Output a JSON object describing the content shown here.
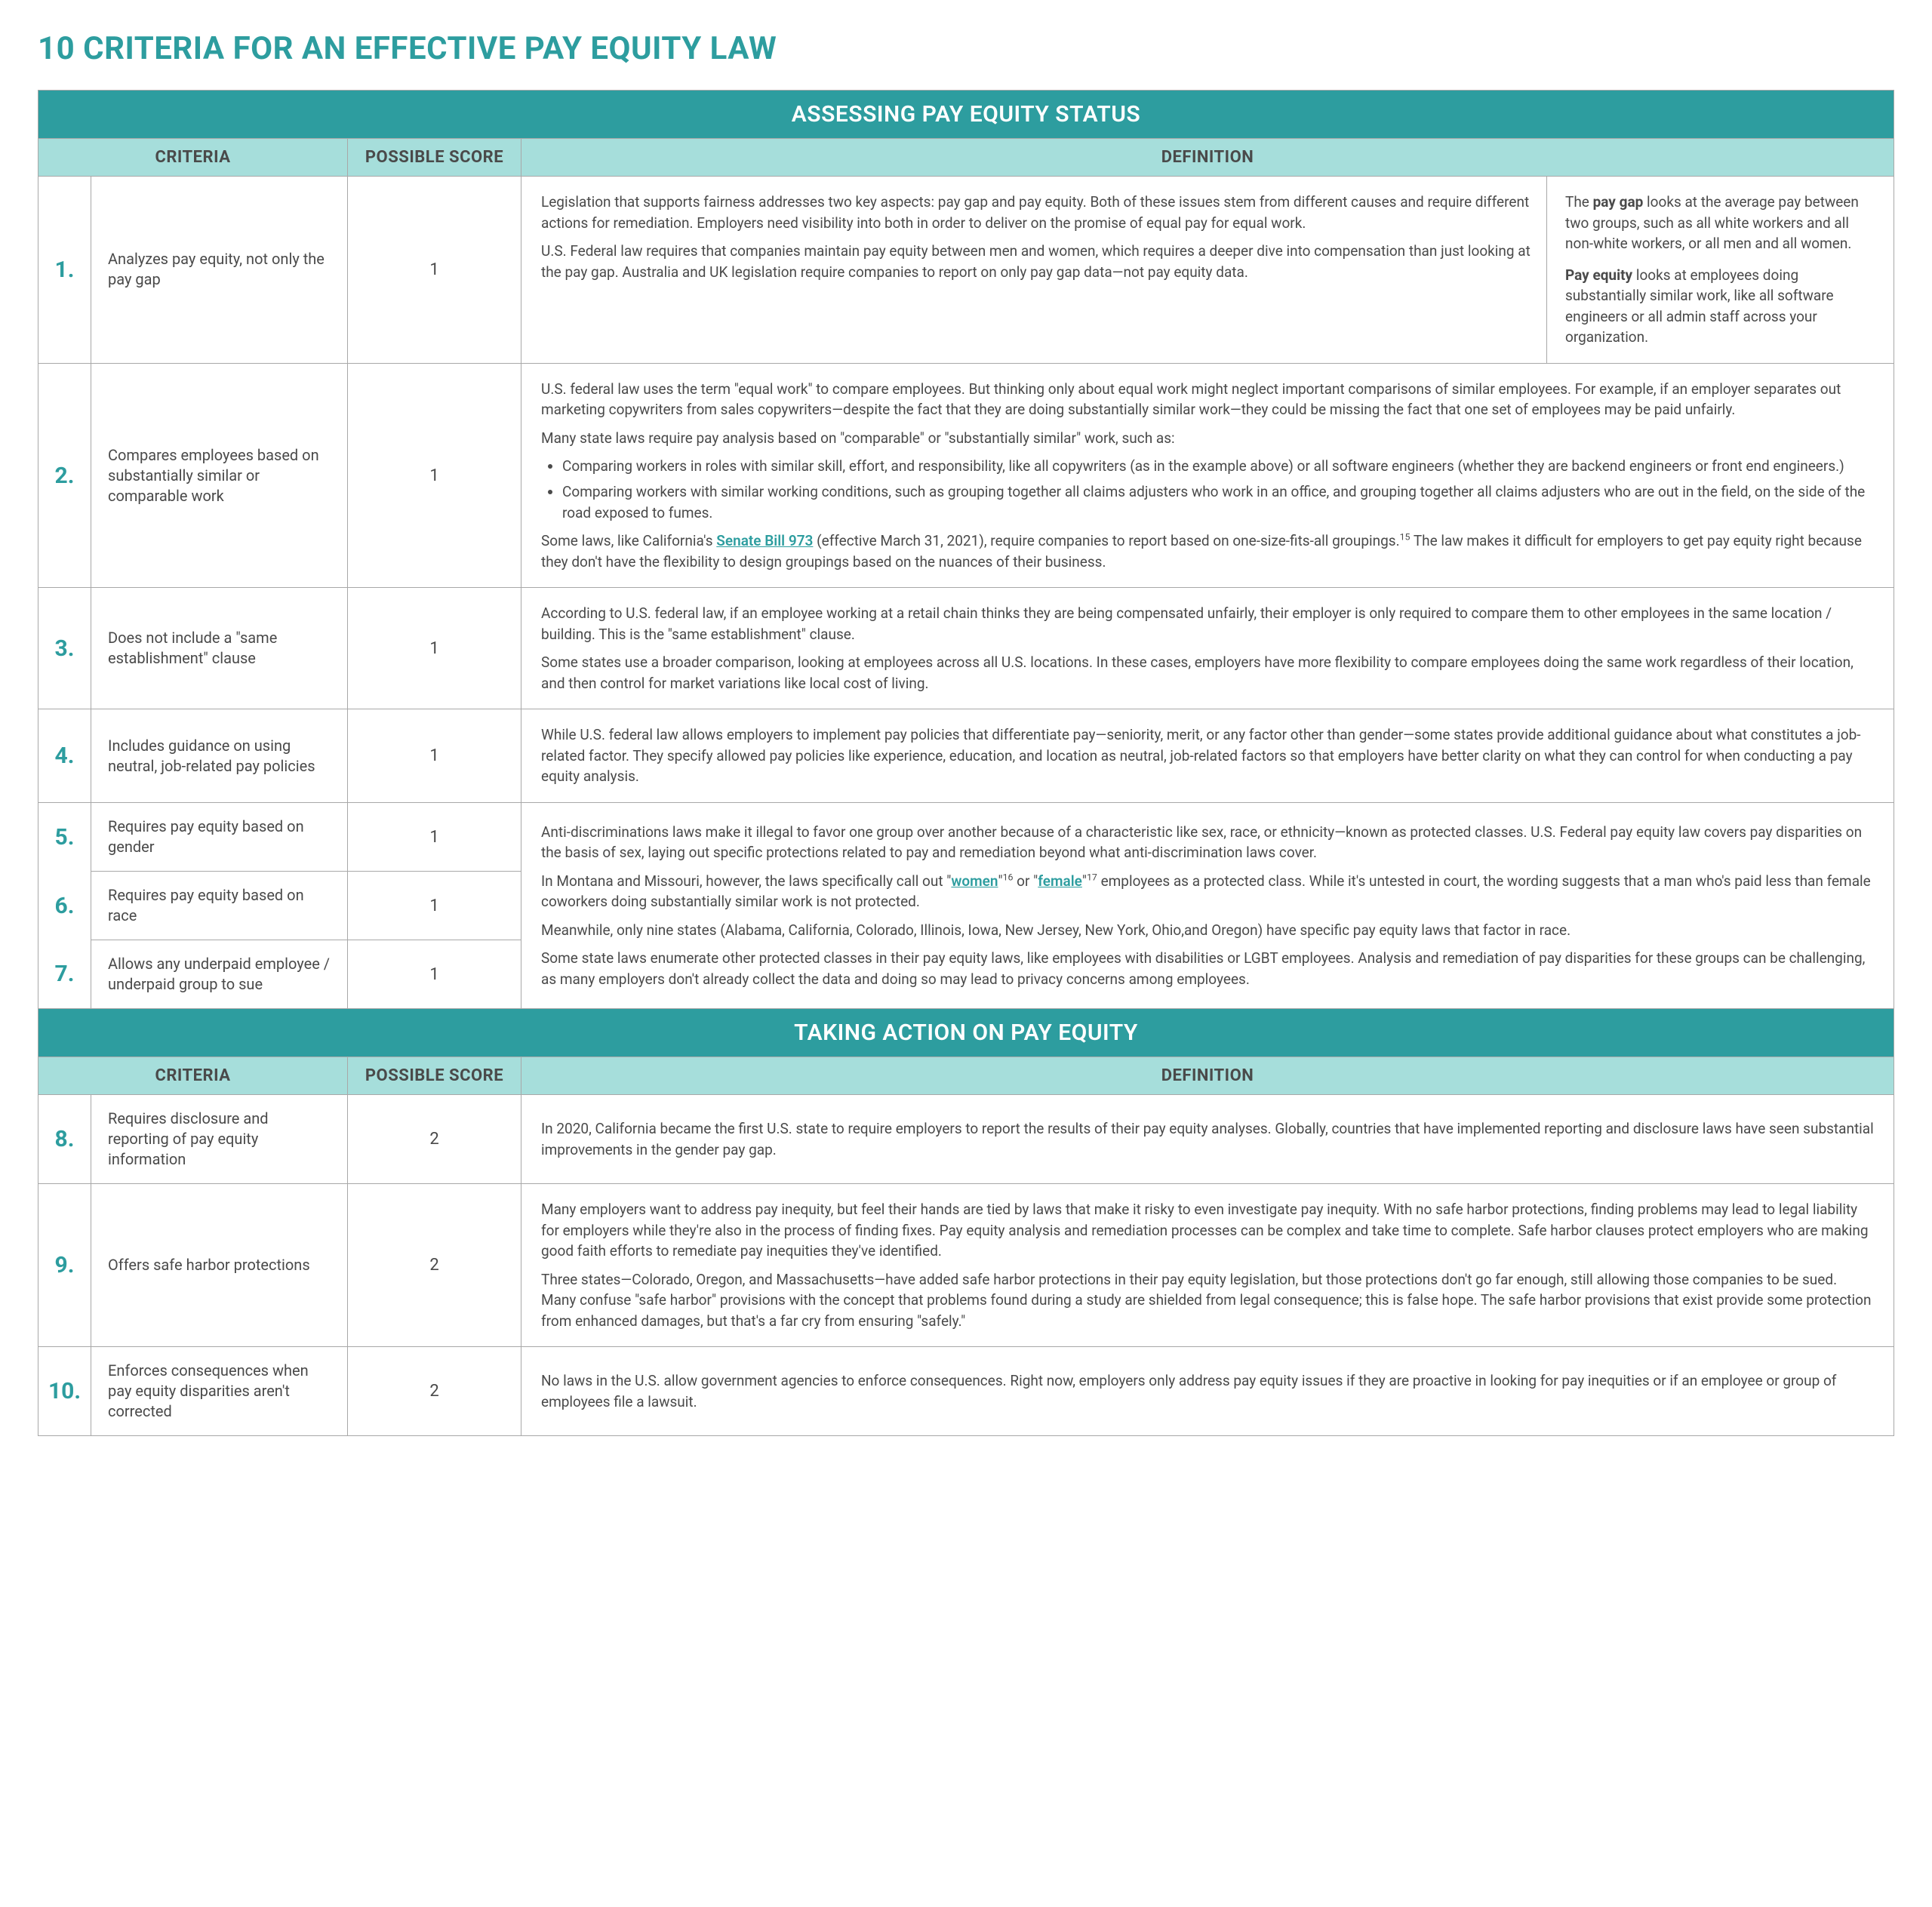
{
  "colors": {
    "accent": "#2d9d9f",
    "header_bg": "#a6dedb",
    "border": "#a8a8a8",
    "text": "#4a4a4a"
  },
  "title": "10 CRITERIA FOR AN EFFECTIVE PAY EQUITY LAW",
  "section1_title": "ASSESSING PAY EQUITY STATUS",
  "section2_title": "TAKING ACTION ON PAY EQUITY",
  "headers": {
    "criteria": "CRITERIA",
    "score": "POSSIBLE SCORE",
    "definition": "DEFINITION"
  },
  "rows": {
    "r1": {
      "num": "1.",
      "criteria": "Analyzes pay equity, not only the pay gap",
      "score": "1",
      "def_p1": "Legislation that supports fairness addresses two key aspects: pay gap and pay equity. Both of these issues stem from different causes and require different actions for remediation. Employers need visibility into both in order to deliver on the promise of equal pay for equal work.",
      "def_p2": "U.S. Federal law requires that companies maintain pay equity between men and women, which requires a deeper dive into compensation than just looking at the pay gap. Australia and UK legislation require companies to report on only pay gap data—not pay equity data.",
      "side_p1_pre": "The ",
      "side_p1_bold": "pay gap",
      "side_p1_post": " looks at the average pay between two groups, such as all white workers and all non-white workers, or all men and all women.",
      "side_p2_bold": "Pay equity",
      "side_p2_post": " looks at employees doing substantially similar work, like all software engineers or all admin staff across your organization."
    },
    "r2": {
      "num": "2.",
      "criteria": "Compares employees based on substantially similar or comparable work",
      "score": "1",
      "p1": "U.S. federal law uses the term \"equal work\" to compare employees. But thinking only about equal work might neglect important comparisons of similar employees. For example, if an employer separates out marketing copywriters from sales copywriters—despite the fact that they are doing substantially similar work—they could be missing the fact that one set of employees may be paid unfairly.",
      "p2": "Many state laws require pay analysis based on \"comparable\" or \"substantially similar\" work, such as:",
      "li1": "Comparing workers in roles with similar skill, effort, and responsibility, like all copywriters (as in the example above) or all software engineers (whether they are backend engineers or front end engineers.)",
      "li2": "Comparing workers with similar working conditions, such as grouping together all claims adjusters who work in an office, and grouping together all claims adjusters who are out in the field, on the side of the road exposed to fumes.",
      "p3_pre": "Some laws, like California's ",
      "p3_link": "Senate Bill 973",
      "p3_post": " (effective March 31, 2021), require companies to report based on one-size-fits-all groupings.",
      "p3_sup": "15",
      "p4": "The law makes it difficult for employers to get pay equity right because they don't have the flexibility to design groupings based on the nuances of their business."
    },
    "r3": {
      "num": "3.",
      "criteria": "Does not include a \"same establishment\" clause",
      "score": "1",
      "p1": "According to U.S. federal law, if an employee working at a retail chain thinks they are being compensated unfairly, their employer is only required to compare them to other employees in the same location / building. This is the \"same establishment\" clause.",
      "p2": "Some states use a broader comparison, looking at employees across all U.S. locations. In these cases, employers have more flexibility to compare employees doing the same work regardless of their location, and then control for market variations like local cost of living."
    },
    "r4": {
      "num": "4.",
      "criteria": "Includes guidance on using neutral, job-related pay policies",
      "score": "1",
      "p1": "While U.S. federal law allows employers to implement pay policies that differentiate pay—seniority, merit, or any factor other than gender—some states provide additional guidance about what constitutes a job-related factor. They specify allowed pay policies like experience, education, and location as neutral, job-related factors so that employers have better clarity on what they can control for when conducting a pay equity analysis."
    },
    "r5": {
      "num": "5.",
      "criteria": "Requires pay equity based on gender",
      "score": "1"
    },
    "r6": {
      "num": "6.",
      "criteria": "Requires pay equity based on race",
      "score": "1"
    },
    "r7": {
      "num": "7.",
      "criteria": "Allows any underpaid employee / underpaid group to sue",
      "score": "1"
    },
    "r567def": {
      "p1": "Anti-discriminations laws make it illegal to favor one group over another because of a characteristic like sex, race, or ethnicity—known as protected classes. U.S. Federal pay equity law covers pay disparities on the basis of sex, laying out specific protections related to pay and remediation beyond what anti-discrimination laws cover.",
      "p2_pre": "In Montana and Missouri, however, the laws specifically call out \"",
      "p2_link1": "women",
      "p2_mid1": "\"",
      "p2_sup1": "16",
      "p2_mid2": " or \"",
      "p2_link2": "female",
      "p2_mid3": "\"",
      "p2_sup2": "17",
      "p2_post": " employees as a protected class. While it's untested in court, the wording suggests that a man who's paid less than female coworkers doing substantially similar work is not protected.",
      "p3": "Meanwhile, only nine states (Alabama, California, Colorado, Illinois, Iowa, New Jersey, New York, Ohio,and Oregon) have specific pay equity laws that factor in race.",
      "p4": "Some state laws enumerate other protected classes in their pay equity laws, like employees with disabilities or LGBT employees. Analysis and remediation of pay disparities for these groups can be challenging, as many employers don't already collect the data and doing so may lead to privacy concerns among employees."
    },
    "r8": {
      "num": "8.",
      "criteria": "Requires disclosure and reporting of pay equity information",
      "score": "2",
      "p1": "In 2020, California became the first U.S. state to require employers to report the results of their pay equity analyses. Globally, countries that have implemented reporting and disclosure laws have seen substantial improvements in the gender pay gap."
    },
    "r9": {
      "num": "9.",
      "criteria": "Offers safe harbor protections",
      "score": "2",
      "p1": "Many employers want to address pay inequity, but feel their hands are tied by laws that make it risky to even investigate pay inequity. With no safe harbor protections, finding problems may lead to legal liability for employers while they're also in the process of finding fixes. Pay equity analysis and remediation processes can be complex and take time to complete. Safe harbor clauses protect employers who are making good faith efforts to remediate pay inequities they've identified.",
      "p2": "Three states—Colorado, Oregon, and Massachusetts—have added safe harbor protections in their pay equity legislation, but those protections don't go far enough, still allowing those companies to be sued. Many confuse \"safe harbor\" provisions with the concept that problems found during a study are shielded from legal consequence; this is false hope. The safe harbor provisions that exist provide some protection from enhanced damages, but that's a far cry from ensuring \"safely.\""
    },
    "r10": {
      "num": "10.",
      "criteria": "Enforces consequences when pay equity disparities aren't corrected",
      "score": "2",
      "p1": "No laws in the U.S. allow government agencies to enforce consequences. Right now, employers only address pay equity issues if they are proactive in looking for pay inequities or if an employee or group of employees file a lawsuit."
    }
  }
}
